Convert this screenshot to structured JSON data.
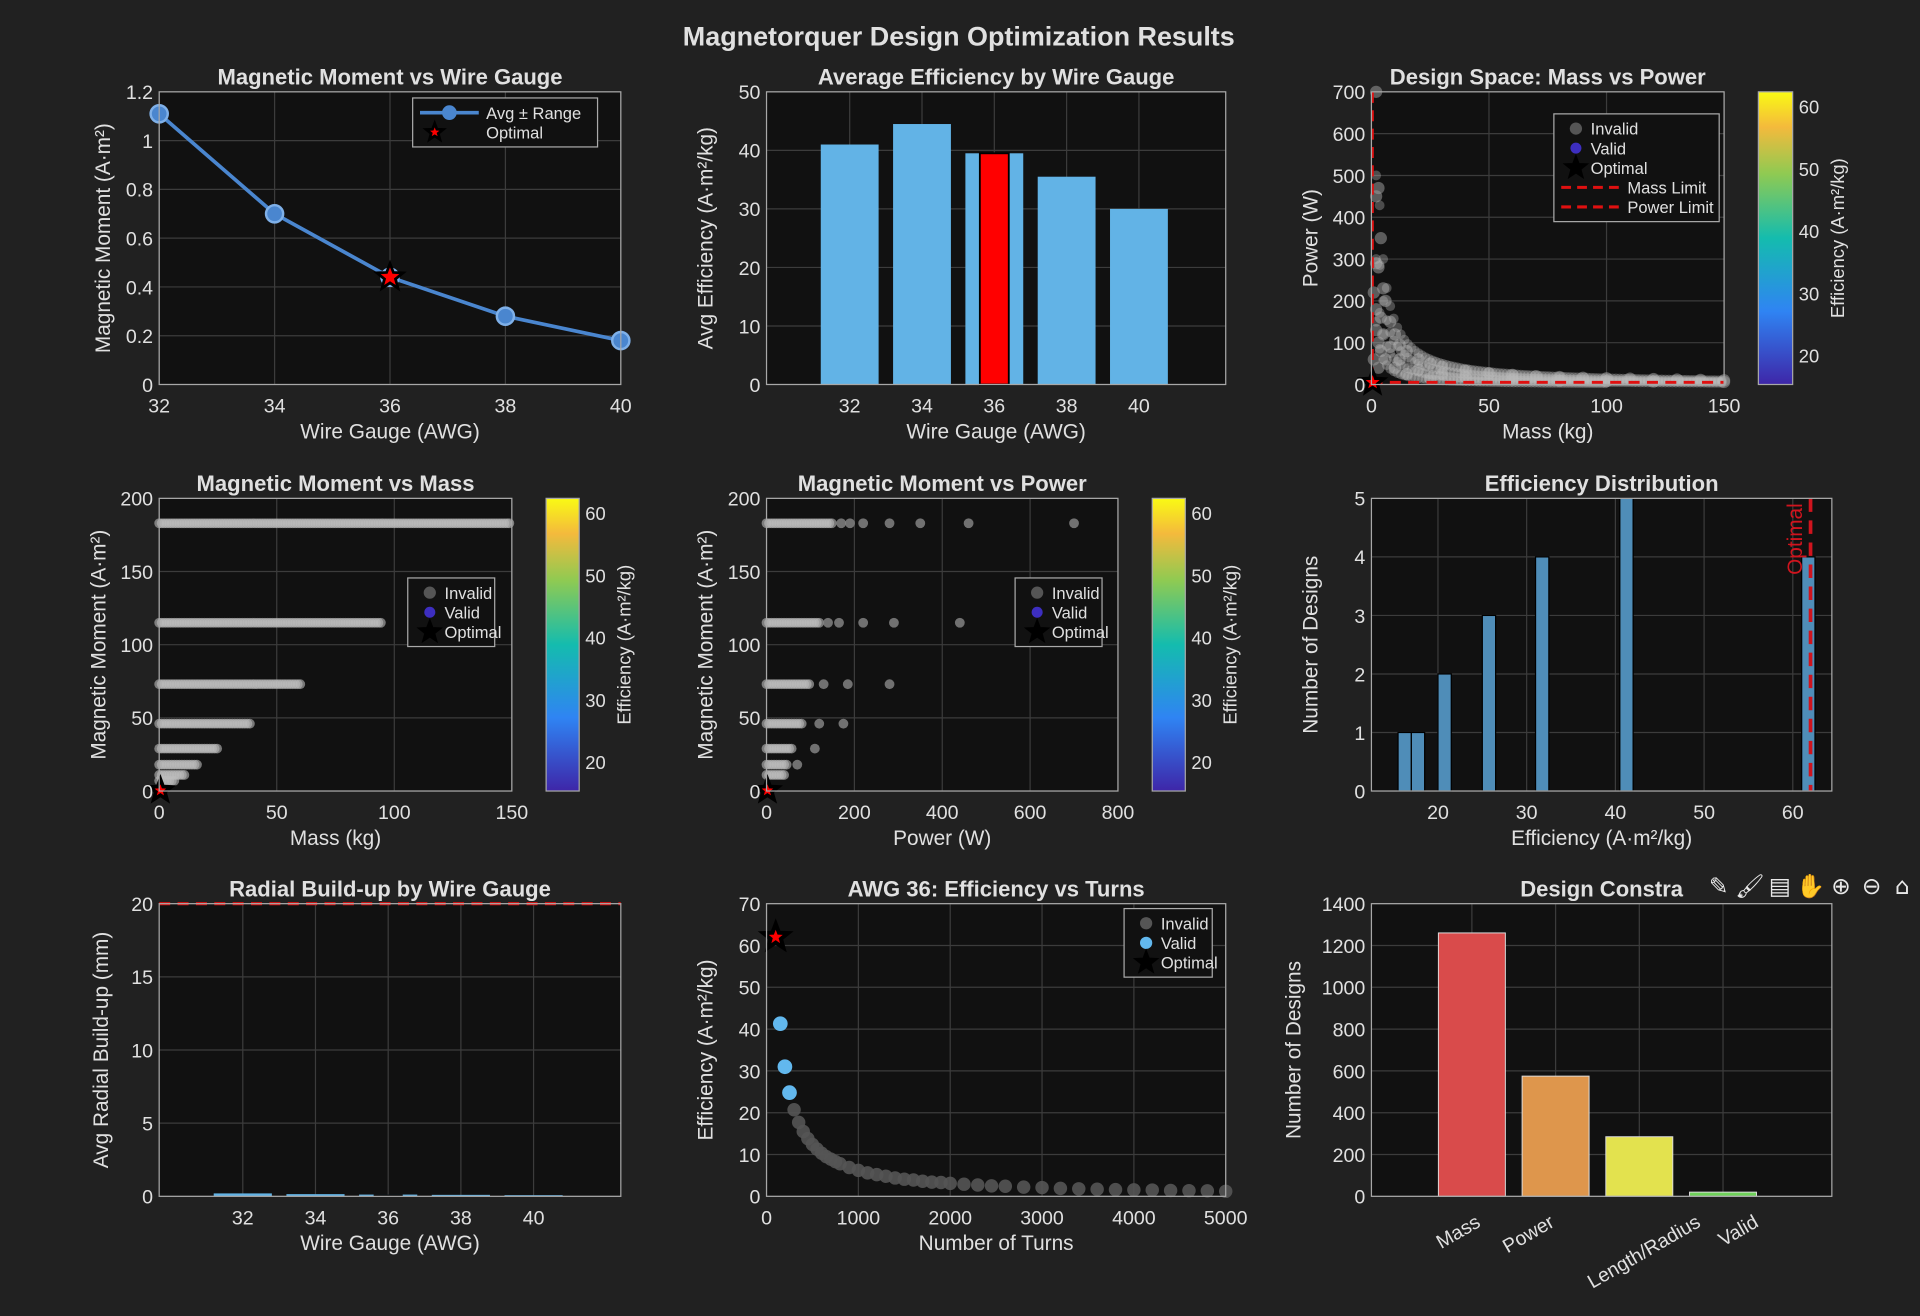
{
  "figure_title": "Magnetorquer Design Optimization Results",
  "toolbar": [
    {
      "icon": "edit-icon",
      "glyph": "✎"
    },
    {
      "icon": "brush-icon",
      "glyph": "🖌"
    },
    {
      "icon": "datatip-icon",
      "glyph": "▤"
    },
    {
      "icon": "pan-icon",
      "glyph": "✋"
    },
    {
      "icon": "zoom-in-icon",
      "glyph": "⊕"
    },
    {
      "icon": "zoom-out-icon",
      "glyph": "⊖"
    },
    {
      "icon": "home-icon",
      "glyph": "⌂"
    }
  ],
  "colors": {
    "bar": "#62b3e6",
    "line": "#4a86cf",
    "optimal": "#ff0000",
    "invalid": "#9a9a9a",
    "hist": "#4f8db8",
    "limit": "#e01010"
  },
  "chart_data": [
    {
      "type": "line",
      "title": "Magnetic Moment vs Wire Gauge",
      "xlabel": "Wire Gauge (AWG)",
      "ylabel": "Magnetic Moment (A·m²)",
      "xlim": [
        32,
        40
      ],
      "ylim": [
        0,
        1.2
      ],
      "xticks": [
        32,
        34,
        36,
        38,
        40
      ],
      "yticks": [
        0,
        0.2,
        0.4,
        0.6,
        0.8,
        1,
        1.2
      ],
      "x": [
        32,
        34,
        36,
        38,
        40
      ],
      "series": [
        {
          "name": "Avg ± Range",
          "values": [
            1.11,
            0.7,
            0.44,
            0.28,
            0.18
          ]
        }
      ],
      "optimal": {
        "name": "Optimal",
        "x": 36,
        "y": 0.44
      },
      "legend": "top-right",
      "grid": true
    },
    {
      "type": "bar",
      "title": "Average Efficiency by Wire Gauge",
      "xlabel": "Wire Gauge (AWG)",
      "ylabel": "Avg Efficiency (A·m²/kg)",
      "xlim": [
        29.7,
        42.4
      ],
      "ylim": [
        0,
        50
      ],
      "xticks": [
        32,
        34,
        36,
        38,
        40
      ],
      "yticks": [
        0,
        10,
        20,
        30,
        40,
        50
      ],
      "categories": [
        32,
        34,
        36,
        38,
        40
      ],
      "values": [
        41,
        44.5,
        39.5,
        35.5,
        30
      ],
      "highlight": {
        "category": 36,
        "value": 39.5
      },
      "grid": true
    },
    {
      "type": "scatter",
      "title": "Design Space: Mass vs Power",
      "xlabel": "Mass (kg)",
      "ylabel": "Power (W)",
      "xlim": [
        0,
        150
      ],
      "ylim": [
        0,
        700
      ],
      "xticks": [
        0,
        50,
        100,
        150
      ],
      "yticks": [
        0,
        100,
        200,
        300,
        400,
        500,
        600,
        700
      ],
      "invalid": [
        [
          2,
          700
        ],
        [
          3,
          470
        ],
        [
          2,
          450
        ],
        [
          4,
          350
        ],
        [
          2,
          290
        ],
        [
          3,
          280
        ],
        [
          5,
          230
        ],
        [
          1,
          220
        ],
        [
          6,
          200
        ],
        [
          2,
          180
        ],
        [
          8,
          150
        ],
        [
          10,
          120
        ],
        [
          4,
          160
        ],
        [
          5,
          120
        ],
        [
          12,
          95
        ],
        [
          15,
          80
        ],
        [
          20,
          60
        ],
        [
          25,
          50
        ],
        [
          30,
          42
        ],
        [
          40,
          33
        ],
        [
          50,
          27
        ],
        [
          60,
          23
        ],
        [
          70,
          20
        ],
        [
          80,
          18
        ],
        [
          90,
          16
        ],
        [
          100,
          15
        ],
        [
          110,
          14
        ],
        [
          120,
          13
        ],
        [
          130,
          12
        ],
        [
          140,
          11
        ],
        [
          150,
          10
        ],
        [
          8,
          90
        ],
        [
          12,
          60
        ],
        [
          20,
          35
        ],
        [
          30,
          25
        ],
        [
          40,
          18
        ],
        [
          60,
          12
        ],
        [
          80,
          9
        ],
        [
          100,
          8
        ],
        [
          120,
          7
        ],
        [
          150,
          6
        ],
        [
          4,
          80
        ],
        [
          6,
          60
        ],
        [
          10,
          40
        ],
        [
          15,
          25
        ],
        [
          25,
          15
        ],
        [
          3,
          100
        ],
        [
          2,
          130
        ],
        [
          1,
          60
        ],
        [
          3,
          40
        ]
      ],
      "optimal": {
        "x": 0.5,
        "y": 5
      },
      "mass_limit": 0.5,
      "power_limit": 5,
      "legend_entries": [
        "Invalid",
        "Valid",
        "Optimal",
        "Mass Limit",
        "Power Limit"
      ],
      "colorbar": {
        "label": "Efficiency (A·m²/kg)",
        "range": [
          15.5,
          62.5
        ],
        "ticks": [
          20,
          30,
          40,
          50,
          60
        ]
      },
      "grid": true
    },
    {
      "type": "scatter",
      "title": "Magnetic Moment vs Mass",
      "xlabel": "Mass (kg)",
      "ylabel": "Magnetic Moment (A·m²)",
      "xlim": [
        0,
        150
      ],
      "ylim": [
        0,
        200
      ],
      "xticks": [
        0,
        50,
        100,
        150
      ],
      "yticks": [
        0,
        50,
        100,
        150,
        200
      ],
      "rows": [
        {
          "moment": 183,
          "mass_max": 150
        },
        {
          "moment": 115,
          "mass_max": 95
        },
        {
          "moment": 73,
          "mass_max": 60
        },
        {
          "moment": 46,
          "mass_max": 39
        },
        {
          "moment": 29,
          "mass_max": 25
        },
        {
          "moment": 18,
          "mass_max": 17
        },
        {
          "moment": 11,
          "mass_max": 11
        },
        {
          "moment": 7,
          "mass_max": 7
        }
      ],
      "optimal": {
        "x": 0.5,
        "y": 0.4
      },
      "legend_entries": [
        "Invalid",
        "Valid",
        "Optimal"
      ],
      "colorbar": {
        "label": "Efficiency (A·m²/kg)",
        "range": [
          15.5,
          62.5
        ],
        "ticks": [
          20,
          30,
          40,
          50,
          60
        ]
      },
      "grid": true
    },
    {
      "type": "scatter",
      "title": "Magnetic Moment vs Power",
      "xlabel": "Power (W)",
      "ylabel": "Magnetic Moment (A·m²)",
      "xlim": [
        0,
        800
      ],
      "ylim": [
        0,
        200
      ],
      "xticks": [
        0,
        200,
        400,
        600,
        800
      ],
      "yticks": [
        0,
        50,
        100,
        150,
        200
      ],
      "rows": [
        {
          "moment": 183,
          "power_max": 150,
          "outliers": [
            170,
            190,
            220,
            280,
            350,
            460,
            700
          ]
        },
        {
          "moment": 115,
          "power_max": 120,
          "outliers": [
            140,
            165,
            220,
            290,
            440
          ]
        },
        {
          "moment": 73,
          "power_max": 100,
          "outliers": [
            130,
            185,
            280
          ]
        },
        {
          "moment": 46,
          "power_max": 80,
          "outliers": [
            120,
            175
          ]
        },
        {
          "moment": 29,
          "power_max": 60,
          "outliers": [
            110
          ]
        },
        {
          "moment": 18,
          "power_max": 50,
          "outliers": [
            70
          ]
        },
        {
          "moment": 11,
          "power_max": 40,
          "outliers": []
        }
      ],
      "optimal": {
        "x": 2,
        "y": 0.4
      },
      "legend_entries": [
        "Invalid",
        "Valid",
        "Optimal"
      ],
      "colorbar": {
        "label": "Efficiency (A·m²/kg)",
        "range": [
          15.5,
          62.5
        ],
        "ticks": [
          20,
          30,
          40,
          50,
          60
        ]
      },
      "grid": true
    },
    {
      "type": "bar",
      "title": "Efficiency Distribution",
      "xlabel": "Efficiency (A·m²/kg)",
      "ylabel": "Number of Designs",
      "xlim": [
        12.5,
        64.4
      ],
      "ylim": [
        0,
        5
      ],
      "xticks": [
        20,
        30,
        40,
        50,
        60
      ],
      "yticks": [
        0,
        1,
        2,
        3,
        4,
        5
      ],
      "bins": [
        [
          15.5,
          17,
          1
        ],
        [
          17,
          18.5,
          1
        ],
        [
          20,
          21.5,
          2
        ],
        [
          25,
          26.5,
          3
        ],
        [
          31,
          32.5,
          4
        ],
        [
          40.5,
          42,
          5
        ],
        [
          61,
          62.5,
          4
        ]
      ],
      "optimal_line": {
        "x": 62,
        "label": "Optimal"
      },
      "grid": true
    },
    {
      "type": "bar",
      "title": "Radial Build-up by Wire Gauge",
      "xlabel": "Wire Gauge (AWG)",
      "ylabel": "Avg Radial Build-up (mm)",
      "xlim": [
        29.7,
        42.4
      ],
      "ylim": [
        0,
        20
      ],
      "xticks": [
        32,
        34,
        36,
        38,
        40
      ],
      "yticks": [
        0,
        5,
        10,
        15,
        20
      ],
      "categories": [
        32,
        34,
        36,
        38,
        40
      ],
      "values": [
        0.2,
        0.15,
        0.12,
        0.1,
        0.08
      ],
      "limit": 20,
      "grid": true
    },
    {
      "type": "scatter",
      "title": "AWG 36: Efficiency vs Turns",
      "xlabel": "Number of Turns",
      "ylabel": "Efficiency (A·m²/kg)",
      "xlim": [
        0,
        5000
      ],
      "ylim": [
        0,
        70
      ],
      "xticks": [
        0,
        1000,
        2000,
        3000,
        4000,
        5000
      ],
      "yticks": [
        0,
        10,
        20,
        30,
        40,
        50,
        60,
        70
      ],
      "invalid": [
        [
          300,
          20.7
        ],
        [
          350,
          17.7
        ],
        [
          400,
          15.5
        ],
        [
          450,
          13.8
        ],
        [
          500,
          12.4
        ],
        [
          550,
          11.3
        ],
        [
          600,
          10.3
        ],
        [
          650,
          9.5
        ],
        [
          700,
          8.9
        ],
        [
          750,
          8.3
        ],
        [
          800,
          7.8
        ],
        [
          900,
          6.9
        ],
        [
          1000,
          6.2
        ],
        [
          1100,
          5.6
        ],
        [
          1200,
          5.2
        ],
        [
          1300,
          4.8
        ],
        [
          1400,
          4.4
        ],
        [
          1500,
          4.1
        ],
        [
          1600,
          3.9
        ],
        [
          1700,
          3.6
        ],
        [
          1800,
          3.4
        ],
        [
          1900,
          3.3
        ],
        [
          2000,
          3.1
        ],
        [
          2150,
          2.9
        ],
        [
          2300,
          2.7
        ],
        [
          2450,
          2.5
        ],
        [
          2600,
          2.4
        ],
        [
          2800,
          2.2
        ],
        [
          3000,
          2.1
        ],
        [
          3200,
          1.9
        ],
        [
          3400,
          1.8
        ],
        [
          3600,
          1.7
        ],
        [
          3800,
          1.6
        ],
        [
          4000,
          1.55
        ],
        [
          4200,
          1.5
        ],
        [
          4400,
          1.4
        ],
        [
          4600,
          1.35
        ],
        [
          4800,
          1.3
        ],
        [
          5000,
          1.2
        ]
      ],
      "valid": [
        [
          150,
          41.3
        ],
        [
          200,
          31
        ],
        [
          250,
          24.8
        ]
      ],
      "optimal": {
        "x": 100,
        "y": 62
      },
      "legend_entries": [
        "Invalid",
        "Valid",
        "Optimal"
      ],
      "grid": true
    },
    {
      "type": "bar",
      "title": "Design Constra",
      "xlabel": "",
      "ylabel": "Number of Designs",
      "xlim": [
        -0.2,
        5.3
      ],
      "ylim": [
        0,
        1400
      ],
      "yticks": [
        0,
        200,
        400,
        600,
        800,
        1000,
        1200,
        1400
      ],
      "categories": [
        "Mass",
        "Power",
        "Length/Radius",
        "Valid"
      ],
      "values": [
        1260,
        575,
        285,
        20
      ],
      "bar_colors": [
        "#d94b4b",
        "#de964c",
        "#e3e24e",
        "#6fd25a"
      ],
      "grid": true
    }
  ]
}
